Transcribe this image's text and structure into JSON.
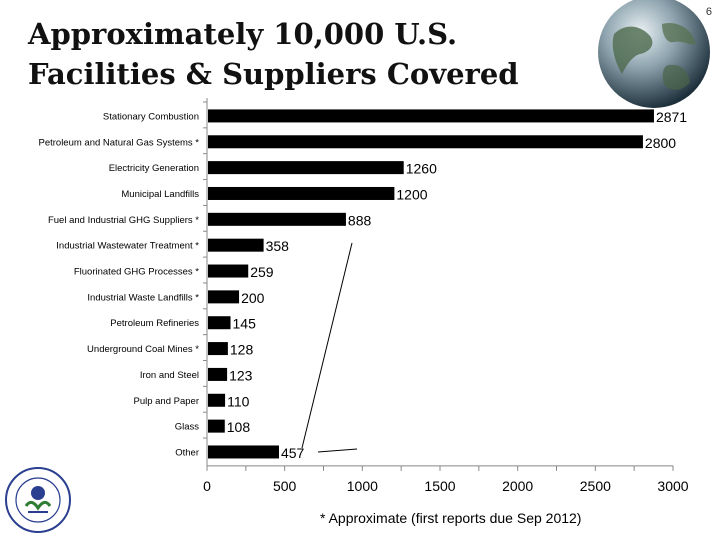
{
  "page_number": "6",
  "title": {
    "line1": "Approximately 10,000 U.S.",
    "line2": "Facilities & Suppliers Covered"
  },
  "footnote": "* Approximate (first reports due Sep 2012)",
  "seal": {
    "icon": "epa-seal-icon",
    "text": "UNITED STATES · ENVIRONMENTAL PROTECTION AGENCY"
  },
  "chart_data": {
    "type": "bar",
    "orientation": "horizontal",
    "categories": [
      "Stationary Combustion",
      "Petroleum and Natural Gas Systems *",
      "Electricity Generation",
      "Municipal Landfills",
      "Fuel and Industrial GHG Suppliers *",
      "Industrial Wastewater Treatment *",
      "Fluorinated GHG Processes *",
      "Industrial Waste Landfills *",
      "Petroleum Refineries",
      "Underground Coal Mines *",
      "Iron and Steel",
      "Pulp and Paper",
      "Glass",
      "Other"
    ],
    "values": [
      2871,
      2800,
      1260,
      1200,
      888,
      358,
      259,
      200,
      145,
      128,
      123,
      110,
      108,
      457
    ],
    "value_labels": [
      "2871",
      "2800",
      "1260",
      "1200",
      "888",
      "358",
      "259",
      "200",
      "145",
      "128",
      "123",
      "110",
      "108",
      "457"
    ],
    "xlim": [
      0,
      3000
    ],
    "xticks": [
      0,
      500,
      1000,
      1500,
      2000,
      2500,
      3000
    ],
    "xtick_labels": [
      "0",
      "500",
      "1000",
      "1500",
      "2000",
      "2500",
      "3000"
    ],
    "grid": false,
    "bar_color": "#000000"
  }
}
